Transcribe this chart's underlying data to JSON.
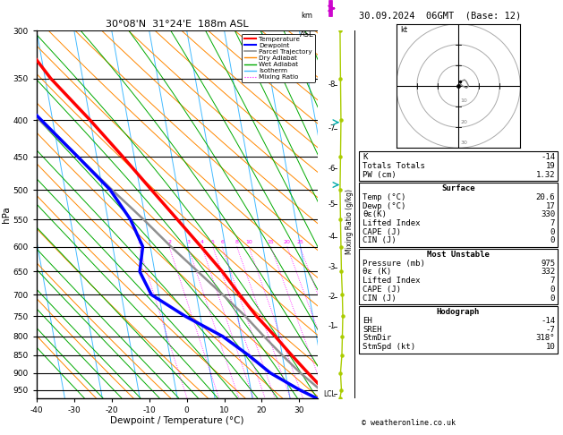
{
  "title_left": "30°08'N  31°24'E  188m ASL",
  "title_right": "30.09.2024  06GMT  (Base: 12)",
  "xlabel": "Dewpoint / Temperature (°C)",
  "ylabel_left": "hPa",
  "pmin": 300,
  "pmax": 975,
  "xmin": -40,
  "xmax": 35,
  "skew_factor": 17.5,
  "pressure_levels": [
    300,
    350,
    400,
    450,
    500,
    550,
    600,
    650,
    700,
    750,
    800,
    850,
    900,
    950
  ],
  "temp_color": "#ff0000",
  "dewpoint_color": "#0000ff",
  "parcel_color": "#909090",
  "dry_adiabat_color": "#ff8800",
  "wet_adiabat_color": "#00aa00",
  "isotherm_color": "#44bbff",
  "mixing_ratio_color": "#ff00ff",
  "mixing_ratio_values": [
    1,
    2,
    3,
    4,
    5,
    6,
    8,
    10,
    15,
    20,
    25
  ],
  "temp_profile_p": [
    975,
    950,
    900,
    850,
    800,
    750,
    700,
    650,
    600,
    550,
    500,
    450,
    400,
    350,
    300
  ],
  "temp_profile_T": [
    20.6,
    19.5,
    16.0,
    12.5,
    9.0,
    5.0,
    1.5,
    -2.0,
    -6.5,
    -11.5,
    -17.0,
    -23.0,
    -30.0,
    -38.5,
    -46.0
  ],
  "dewp_profile_p": [
    975,
    950,
    900,
    850,
    800,
    750,
    700,
    650,
    600,
    550,
    500,
    450,
    400,
    350,
    300
  ],
  "dewp_profile_T": [
    17.0,
    13.0,
    6.0,
    1.0,
    -5.0,
    -14.0,
    -22.0,
    -24.0,
    -22.0,
    -24.0,
    -28.0,
    -35.0,
    -43.0,
    -52.0,
    -60.0
  ],
  "parcel_profile_p": [
    975,
    950,
    900,
    850,
    800,
    750,
    700,
    650,
    600,
    550,
    500,
    450,
    400,
    350
  ],
  "parcel_profile_T": [
    20.6,
    18.5,
    14.0,
    10.0,
    6.0,
    2.0,
    -3.0,
    -8.5,
    -14.5,
    -20.5,
    -27.5,
    -35.0,
    -43.5,
    -53.0
  ],
  "lcl_pressure": 963,
  "km_labels": [
    8,
    7,
    6,
    5,
    4,
    3,
    2,
    1
  ],
  "km_pressures": [
    357,
    411,
    467,
    524,
    582,
    641,
    705,
    775
  ],
  "wind_p": [
    975,
    950,
    900,
    850,
    800,
    750,
    700,
    650,
    600,
    550,
    500,
    450,
    400,
    350,
    300
  ],
  "wind_off": [
    0.0,
    0.15,
    0.05,
    0.2,
    0.25,
    0.3,
    0.25,
    0.15,
    0.1,
    0.05,
    0.0,
    0.05,
    0.1,
    0.05,
    0.0
  ],
  "stats_k": "-14",
  "stats_totals": "19",
  "stats_pw": "1.32",
  "surf_temp": "20.6",
  "surf_dewp": "17",
  "surf_theta": "330",
  "surf_li": "7",
  "surf_cape": "0",
  "surf_cin": "0",
  "mu_press": "975",
  "mu_theta": "332",
  "mu_li": "7",
  "mu_cape": "0",
  "mu_cin": "0",
  "hodo_eh": "-14",
  "hodo_sreh": "-7",
  "hodo_stmdir": "318°",
  "hodo_stmspd": "10"
}
